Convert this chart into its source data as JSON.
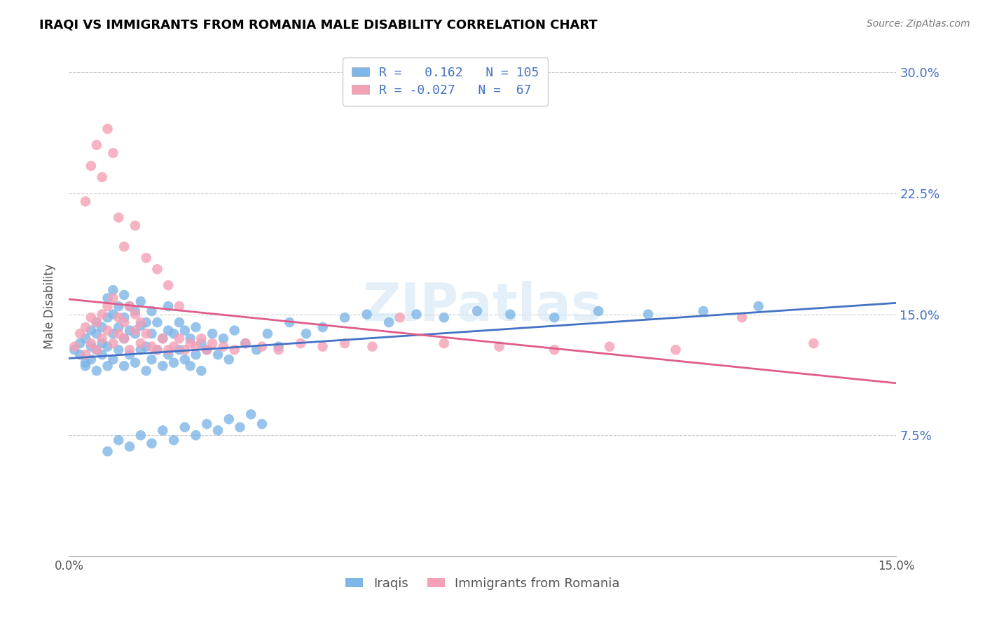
{
  "title": "IRAQI VS IMMIGRANTS FROM ROMANIA MALE DISABILITY CORRELATION CHART",
  "source": "Source: ZipAtlas.com",
  "ylabel": "Male Disability",
  "xlim": [
    0.0,
    0.15
  ],
  "ylim": [
    0.0,
    0.31
  ],
  "yticks": [
    0.075,
    0.15,
    0.225,
    0.3
  ],
  "ytick_labels": [
    "7.5%",
    "15.0%",
    "22.5%",
    "30.0%"
  ],
  "watermark": "ZIPatlas",
  "iraqis_color": "#7EB6E8",
  "romania_color": "#F4A0B5",
  "trend_iraq_color": "#4472C4",
  "trend_romania_color": "#E05C8A",
  "iraq_R": 0.162,
  "iraq_N": 105,
  "romania_R": -0.027,
  "romania_N": 67,
  "iraqis_x": [
    0.001,
    0.002,
    0.002,
    0.003,
    0.003,
    0.003,
    0.004,
    0.004,
    0.004,
    0.005,
    0.005,
    0.005,
    0.005,
    0.006,
    0.006,
    0.006,
    0.007,
    0.007,
    0.007,
    0.007,
    0.008,
    0.008,
    0.008,
    0.008,
    0.009,
    0.009,
    0.009,
    0.01,
    0.01,
    0.01,
    0.01,
    0.011,
    0.011,
    0.011,
    0.012,
    0.012,
    0.012,
    0.013,
    0.013,
    0.013,
    0.014,
    0.014,
    0.014,
    0.015,
    0.015,
    0.015,
    0.016,
    0.016,
    0.017,
    0.017,
    0.018,
    0.018,
    0.018,
    0.019,
    0.019,
    0.02,
    0.02,
    0.021,
    0.021,
    0.022,
    0.022,
    0.023,
    0.023,
    0.024,
    0.024,
    0.025,
    0.026,
    0.027,
    0.028,
    0.029,
    0.03,
    0.032,
    0.034,
    0.036,
    0.038,
    0.04,
    0.043,
    0.046,
    0.05,
    0.054,
    0.058,
    0.063,
    0.068,
    0.074,
    0.08,
    0.088,
    0.096,
    0.105,
    0.115,
    0.125,
    0.007,
    0.009,
    0.011,
    0.013,
    0.015,
    0.017,
    0.019,
    0.021,
    0.023,
    0.025,
    0.027,
    0.029,
    0.031,
    0.033,
    0.035
  ],
  "iraqis_y": [
    0.128,
    0.125,
    0.132,
    0.12,
    0.135,
    0.118,
    0.13,
    0.122,
    0.14,
    0.115,
    0.128,
    0.138,
    0.145,
    0.125,
    0.132,
    0.142,
    0.118,
    0.13,
    0.148,
    0.16,
    0.122,
    0.138,
    0.15,
    0.165,
    0.128,
    0.142,
    0.155,
    0.118,
    0.135,
    0.148,
    0.162,
    0.125,
    0.14,
    0.155,
    0.12,
    0.138,
    0.152,
    0.128,
    0.143,
    0.158,
    0.115,
    0.13,
    0.145,
    0.122,
    0.138,
    0.152,
    0.128,
    0.145,
    0.118,
    0.135,
    0.125,
    0.14,
    0.155,
    0.12,
    0.138,
    0.128,
    0.145,
    0.122,
    0.14,
    0.118,
    0.135,
    0.125,
    0.142,
    0.115,
    0.132,
    0.128,
    0.138,
    0.125,
    0.135,
    0.122,
    0.14,
    0.132,
    0.128,
    0.138,
    0.13,
    0.145,
    0.138,
    0.142,
    0.148,
    0.15,
    0.145,
    0.15,
    0.148,
    0.152,
    0.15,
    0.148,
    0.152,
    0.15,
    0.152,
    0.155,
    0.065,
    0.072,
    0.068,
    0.075,
    0.07,
    0.078,
    0.072,
    0.08,
    0.075,
    0.082,
    0.078,
    0.085,
    0.08,
    0.088,
    0.082
  ],
  "romania_x": [
    0.001,
    0.002,
    0.003,
    0.003,
    0.004,
    0.004,
    0.005,
    0.005,
    0.006,
    0.006,
    0.007,
    0.007,
    0.008,
    0.008,
    0.009,
    0.009,
    0.01,
    0.01,
    0.011,
    0.011,
    0.012,
    0.012,
    0.013,
    0.013,
    0.014,
    0.015,
    0.016,
    0.017,
    0.018,
    0.019,
    0.02,
    0.021,
    0.022,
    0.023,
    0.024,
    0.025,
    0.026,
    0.028,
    0.03,
    0.032,
    0.035,
    0.038,
    0.042,
    0.046,
    0.05,
    0.055,
    0.06,
    0.068,
    0.078,
    0.088,
    0.098,
    0.11,
    0.122,
    0.135,
    0.003,
    0.004,
    0.005,
    0.006,
    0.007,
    0.008,
    0.009,
    0.01,
    0.012,
    0.014,
    0.016,
    0.018,
    0.02
  ],
  "romania_y": [
    0.13,
    0.138,
    0.125,
    0.142,
    0.132,
    0.148,
    0.128,
    0.145,
    0.135,
    0.15,
    0.14,
    0.155,
    0.132,
    0.16,
    0.138,
    0.148,
    0.135,
    0.145,
    0.128,
    0.155,
    0.14,
    0.15,
    0.132,
    0.145,
    0.138,
    0.13,
    0.128,
    0.135,
    0.128,
    0.13,
    0.135,
    0.128,
    0.132,
    0.13,
    0.135,
    0.128,
    0.132,
    0.13,
    0.128,
    0.132,
    0.13,
    0.128,
    0.132,
    0.13,
    0.132,
    0.13,
    0.148,
    0.132,
    0.13,
    0.128,
    0.13,
    0.128,
    0.148,
    0.132,
    0.22,
    0.242,
    0.255,
    0.235,
    0.265,
    0.25,
    0.21,
    0.192,
    0.205,
    0.185,
    0.178,
    0.168,
    0.155
  ]
}
